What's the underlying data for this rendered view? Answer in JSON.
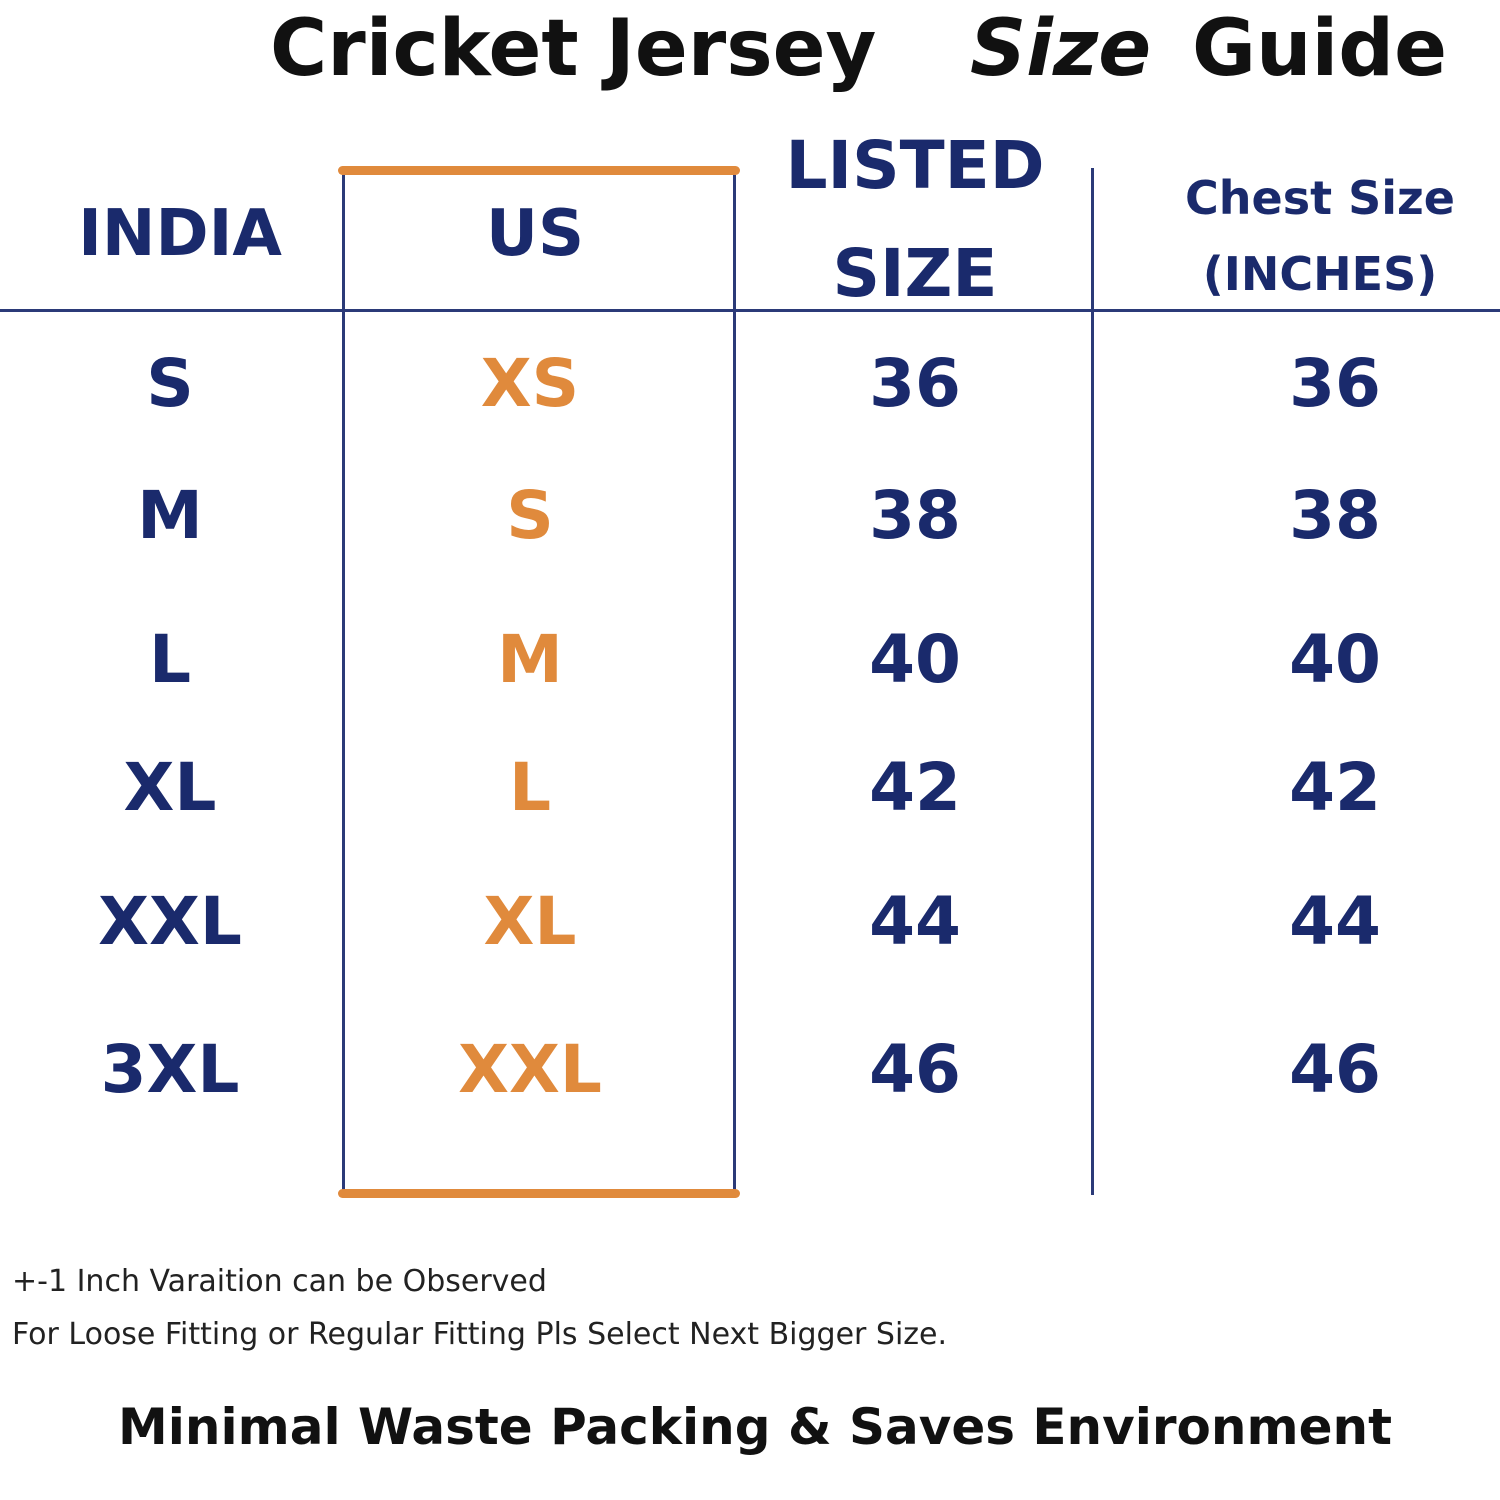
{
  "title": {
    "part1": "Cricket Jersey",
    "part2": "Size",
    "part3": "Guide"
  },
  "headers": {
    "india": "INDIA",
    "us": "US",
    "listed_line1": "LISTED",
    "listed_line2": "SIZE",
    "chest_line1": "Chest Size",
    "chest_line2": "(INCHES)"
  },
  "rows": [
    {
      "india": "S",
      "us": "XS",
      "listed": "36",
      "chest": "36"
    },
    {
      "india": "M",
      "us": "S",
      "listed": "38",
      "chest": "38"
    },
    {
      "india": "L",
      "us": "M",
      "listed": "40",
      "chest": "40"
    },
    {
      "india": "XL",
      "us": "L",
      "listed": "42",
      "chest": "42"
    },
    {
      "india": "XXL",
      "us": "XL",
      "listed": "44",
      "chest": "44"
    },
    {
      "india": "3XL",
      "us": "XXL",
      "listed": "46",
      "chest": "46"
    }
  ],
  "notes": {
    "line1": "+-1 Inch Varaition can be Observed",
    "line2": "For Loose Fitting or Regular Fitting Pls Select Next Bigger Size."
  },
  "footer": "Minimal Waste Packing & Saves Environment",
  "colors": {
    "navy": "#1a2a6c",
    "orange": "#e08a3c",
    "line": "#2b3a78"
  }
}
